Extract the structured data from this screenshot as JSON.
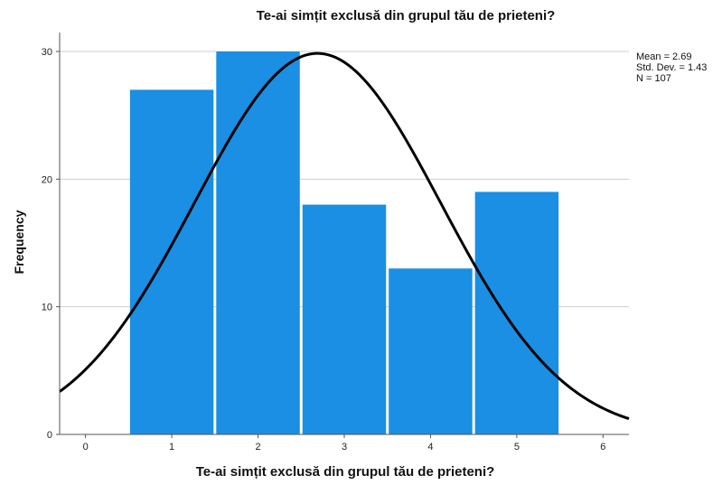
{
  "chart_data": {
    "type": "bar",
    "subtype": "histogram",
    "title": "Te-ai simțit exclusă din grupul tău de prieteni?",
    "xlabel": "Te-ai simțit exclusă din grupul tău de prieteni?",
    "ylabel": "Frequency",
    "x_ticks": [
      "0",
      "1",
      "2",
      "3",
      "4",
      "5",
      "6"
    ],
    "y_ticks": [
      "0",
      "10",
      "20",
      "30"
    ],
    "xlim": [
      -0.3,
      6.3
    ],
    "ylim": [
      0,
      30
    ],
    "grid": "horizontal",
    "bar_color": "#1a8fe3",
    "curve_color": "#000000",
    "bins": [
      {
        "x": 1,
        "value": 27
      },
      {
        "x": 2,
        "value": 30
      },
      {
        "x": 3,
        "value": 18
      },
      {
        "x": 4,
        "value": 13
      },
      {
        "x": 5,
        "value": 19
      }
    ],
    "normal_curve": {
      "mean": 2.69,
      "std": 1.43,
      "n": 107
    },
    "stats_text": {
      "mean": "Mean = 2.69",
      "std": "Std. Dev. = 1.43",
      "n": "N = 107"
    },
    "stats_position": "top-right"
  }
}
